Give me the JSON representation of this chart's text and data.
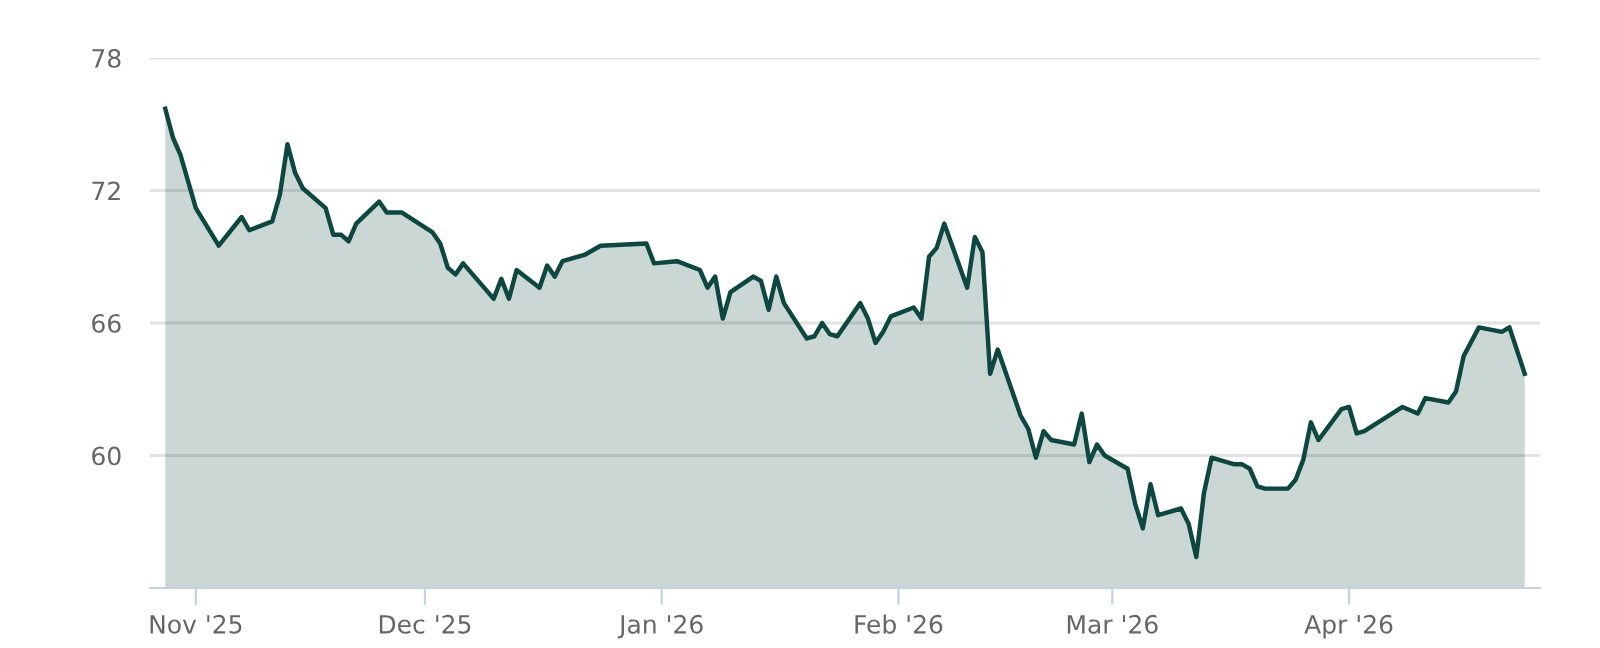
{
  "chart_data": {
    "type": "area",
    "x": [
      "2025-10-28",
      "2025-10-29",
      "2025-10-30",
      "2025-11-01",
      "2025-11-04",
      "2025-11-07",
      "2025-11-08",
      "2025-11-11",
      "2025-11-12",
      "2025-11-13",
      "2025-11-14",
      "2025-11-15",
      "2025-11-18",
      "2025-11-19",
      "2025-11-20",
      "2025-11-21",
      "2025-11-22",
      "2025-11-25",
      "2025-11-26",
      "2025-11-28",
      "2025-12-02",
      "2025-12-03",
      "2025-12-04",
      "2025-12-05",
      "2025-12-06",
      "2025-12-09",
      "2025-12-10",
      "2025-12-11",
      "2025-12-12",
      "2025-12-13",
      "2025-12-16",
      "2025-12-17",
      "2025-12-18",
      "2025-12-19",
      "2025-12-22",
      "2025-12-24",
      "2025-12-30",
      "2025-12-31",
      "2026-01-03",
      "2026-01-06",
      "2026-01-07",
      "2026-01-08",
      "2026-01-09",
      "2026-01-10",
      "2026-01-13",
      "2026-01-14",
      "2026-01-15",
      "2026-01-16",
      "2026-01-17",
      "2026-01-20",
      "2026-01-21",
      "2026-01-22",
      "2026-01-23",
      "2026-01-24",
      "2026-01-27",
      "2026-01-28",
      "2026-01-29",
      "2026-01-30",
      "2026-01-31",
      "2026-02-03",
      "2026-02-04",
      "2026-02-05",
      "2026-02-06",
      "2026-02-07",
      "2026-02-10",
      "2026-02-11",
      "2026-02-12",
      "2026-02-13",
      "2026-02-14",
      "2026-02-17",
      "2026-02-18",
      "2026-02-19",
      "2026-02-20",
      "2026-02-21",
      "2026-02-24",
      "2026-02-25",
      "2026-02-26",
      "2026-02-27",
      "2026-02-28",
      "2026-03-03",
      "2026-03-04",
      "2026-03-05",
      "2026-03-06",
      "2026-03-07",
      "2026-03-10",
      "2026-03-11",
      "2026-03-12",
      "2026-03-13",
      "2026-03-14",
      "2026-03-17",
      "2026-03-18",
      "2026-03-19",
      "2026-03-20",
      "2026-03-21",
      "2026-03-24",
      "2026-03-25",
      "2026-03-26",
      "2026-03-27",
      "2026-03-28",
      "2026-03-31",
      "2026-04-01",
      "2026-04-02",
      "2026-04-03",
      "2026-04-08",
      "2026-04-10",
      "2026-04-11",
      "2026-04-14",
      "2026-04-15",
      "2026-04-16",
      "2026-04-18",
      "2026-04-21",
      "2026-04-22",
      "2026-04-24"
    ],
    "series": [
      {
        "color": "#0d4740",
        "values": [
          75.7,
          74.4,
          73.6,
          71.2,
          69.5,
          70.8,
          70.2,
          70.6,
          71.8,
          74.1,
          72.8,
          72.1,
          71.2,
          70.0,
          70.0,
          69.7,
          70.5,
          71.5,
          71.0,
          71.0,
          70.1,
          69.6,
          68.5,
          68.2,
          68.7,
          67.5,
          67.1,
          68.0,
          67.1,
          68.4,
          67.6,
          68.6,
          68.1,
          68.8,
          69.1,
          69.5,
          69.6,
          68.7,
          68.8,
          68.4,
          67.6,
          68.1,
          66.2,
          67.4,
          68.1,
          67.9,
          66.6,
          68.1,
          66.9,
          65.3,
          65.4,
          66.0,
          65.5,
          65.4,
          66.9,
          66.2,
          65.1,
          65.6,
          66.3,
          66.7,
          66.2,
          69.0,
          69.4,
          70.5,
          67.6,
          69.9,
          69.2,
          63.7,
          64.8,
          61.8,
          61.2,
          59.9,
          61.1,
          60.7,
          60.5,
          61.9,
          59.7,
          60.5,
          60.0,
          59.4,
          57.8,
          56.7,
          58.7,
          57.3,
          57.6,
          56.9,
          55.4,
          58.3,
          59.9,
          59.6,
          59.6,
          59.4,
          58.6,
          58.5,
          58.5,
          58.9,
          59.8,
          61.5,
          60.7,
          62.1,
          62.2,
          61.0,
          61.1,
          62.2,
          61.9,
          62.6,
          62.4,
          62.9,
          64.5,
          65.8,
          65.6,
          65.8,
          63.7
        ]
      }
    ],
    "xlim": [
      "2025-10-26",
      "2026-04-26"
    ],
    "xticks": [
      {
        "value": "2025-11-01",
        "label": "Nov '25"
      },
      {
        "value": "2025-12-01",
        "label": "Dec '25"
      },
      {
        "value": "2026-01-01",
        "label": "Jan '26"
      },
      {
        "value": "2026-02-01",
        "label": "Feb '26"
      },
      {
        "value": "2026-03-01",
        "label": "Mar '26"
      },
      {
        "value": "2026-04-01",
        "label": "Apr '26"
      }
    ],
    "ylim": [
      54,
      78
    ],
    "yticks": [
      60,
      66,
      72,
      78
    ],
    "grid": "y"
  }
}
